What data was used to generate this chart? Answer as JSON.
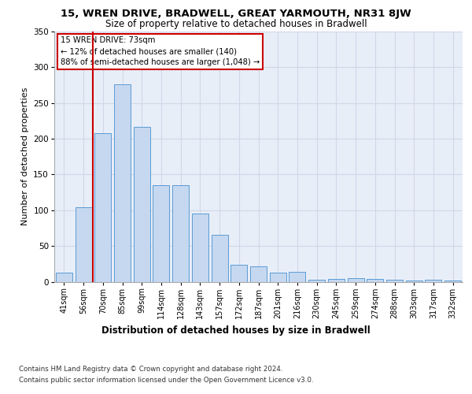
{
  "title1": "15, WREN DRIVE, BRADWELL, GREAT YARMOUTH, NR31 8JW",
  "title2": "Size of property relative to detached houses in Bradwell",
  "xlabel": "Distribution of detached houses by size in Bradwell",
  "ylabel": "Number of detached properties",
  "categories": [
    "41sqm",
    "56sqm",
    "70sqm",
    "85sqm",
    "99sqm",
    "114sqm",
    "128sqm",
    "143sqm",
    "157sqm",
    "172sqm",
    "187sqm",
    "201sqm",
    "216sqm",
    "230sqm",
    "245sqm",
    "259sqm",
    "274sqm",
    "288sqm",
    "303sqm",
    "317sqm",
    "332sqm"
  ],
  "bar_values": [
    13,
    104,
    208,
    276,
    217,
    135,
    135,
    95,
    66,
    24,
    22,
    13,
    14,
    3,
    4,
    5,
    4,
    3,
    2,
    3,
    2
  ],
  "bar_color": "#c5d8f0",
  "bar_edge_color": "#5b9bd5",
  "vline_x": 1.5,
  "vline_color": "#cc0000",
  "annotation_text": "15 WREN DRIVE: 73sqm\n← 12% of detached houses are smaller (140)\n88% of semi-detached houses are larger (1,048) →",
  "annotation_box_color": "#ffffff",
  "annotation_box_edge": "#cc0000",
  "grid_color": "#d0d8e8",
  "background_color": "#e8eef8",
  "footer1": "Contains HM Land Registry data © Crown copyright and database right 2024.",
  "footer2": "Contains public sector information licensed under the Open Government Licence v3.0.",
  "ylim": [
    0,
    350
  ],
  "yticks": [
    0,
    50,
    100,
    150,
    200,
    250,
    300,
    350
  ]
}
